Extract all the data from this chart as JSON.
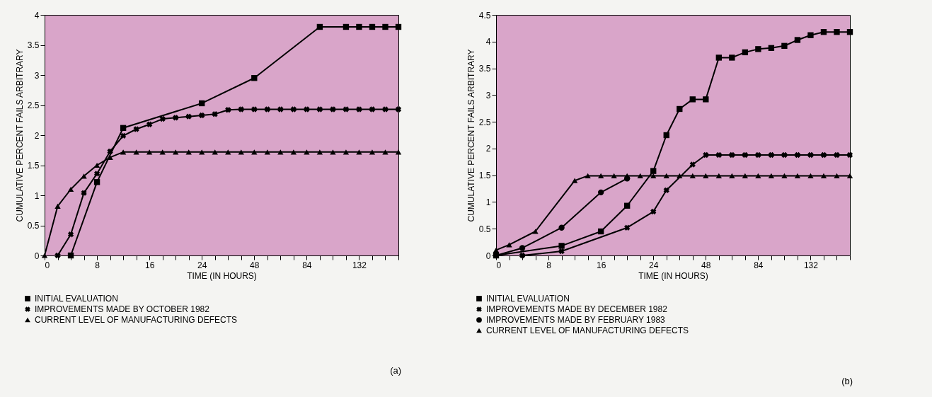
{
  "chart_data": [
    {
      "type": "line",
      "xlabel": "TIME (IN HOURS)",
      "ylabel": "CUMULATIVE PERCENT FAILS ARBITRARY",
      "categories": [
        "0",
        null,
        null,
        null,
        "8",
        null,
        null,
        null,
        "16",
        null,
        null,
        null,
        "24",
        null,
        null,
        null,
        "48",
        null,
        null,
        null,
        "84",
        null,
        null,
        null,
        "132",
        null,
        null,
        null
      ],
      "ylim": [
        0,
        4
      ],
      "yticks": [
        0,
        0.5,
        1,
        1.5,
        2,
        2.5,
        3,
        3.5,
        4
      ],
      "grid": false,
      "legend": "bottom left",
      "annotations": [
        "(a)"
      ],
      "series": [
        {
          "name": "INITIAL EVALUATION",
          "color": "#000000",
          "marker": "square",
          "values": [
            null,
            null,
            0,
            null,
            1.22,
            null,
            2.12,
            null,
            null,
            null,
            null,
            null,
            2.53,
            null,
            null,
            null,
            2.95,
            null,
            null,
            null,
            null,
            3.8,
            null,
            3.8,
            3.8,
            3.8,
            3.8,
            3.8
          ]
        },
        {
          "name": "IMPROVEMENTS MADE BY OCTOBER 1982",
          "color": "#000000",
          "marker": "cross",
          "values": [
            null,
            0,
            0.35,
            1.04,
            1.36,
            1.73,
            1.99,
            2.1,
            2.18,
            2.27,
            2.29,
            2.31,
            2.33,
            2.35,
            2.42,
            2.43,
            2.43,
            2.43,
            2.43,
            2.43,
            2.43,
            2.43,
            2.43,
            2.43,
            2.43,
            2.43,
            2.43,
            2.43
          ]
        },
        {
          "name": "CURRENT LEVEL OF MANUFACTURING DEFECTS",
          "color": "#000000",
          "marker": "triangle",
          "values": [
            0,
            0.82,
            1.1,
            1.32,
            1.5,
            1.63,
            1.72,
            1.72,
            1.72,
            1.72,
            1.72,
            1.72,
            1.72,
            1.72,
            1.72,
            1.72,
            1.72,
            1.72,
            1.72,
            1.72,
            1.72,
            1.72,
            1.72,
            1.72,
            1.72,
            1.72,
            1.72,
            1.72
          ]
        }
      ]
    },
    {
      "type": "line",
      "xlabel": "TIME (IN HOURS)",
      "ylabel": "CUMULATIVE PERCENT FAILS ARBITRARY",
      "categories": [
        "0",
        null,
        null,
        null,
        "8",
        null,
        null,
        null,
        "16",
        null,
        null,
        null,
        "24",
        null,
        null,
        null,
        "48",
        null,
        null,
        null,
        "84",
        null,
        null,
        null,
        "132",
        null,
        null,
        null
      ],
      "ylim": [
        0,
        4.5
      ],
      "yticks": [
        0,
        0.5,
        1,
        1.5,
        2,
        2.5,
        3,
        3.5,
        4,
        4.5
      ],
      "grid": false,
      "legend": "bottom left",
      "annotations": [
        "(b)"
      ],
      "series": [
        {
          "name": "INITIAL EVALUATION",
          "color": "#000000",
          "marker": "square",
          "values": [
            0,
            null,
            null,
            null,
            null,
            0.18,
            null,
            null,
            0.45,
            null,
            0.93,
            null,
            1.58,
            2.25,
            2.74,
            2.92,
            2.92,
            3.7,
            3.7,
            3.8,
            3.86,
            3.88,
            3.92,
            4.03,
            4.12,
            4.18,
            4.18,
            4.18
          ]
        },
        {
          "name": "IMPROVEMENTS MADE BY DECEMBER 1982",
          "color": "#000000",
          "marker": "cross",
          "values": [
            null,
            null,
            0,
            null,
            null,
            0.08,
            null,
            null,
            null,
            null,
            0.52,
            null,
            0.82,
            1.22,
            null,
            1.7,
            1.88,
            1.88,
            1.88,
            1.88,
            1.88,
            1.88,
            1.88,
            1.88,
            1.88,
            1.88,
            1.88,
            1.88
          ]
        },
        {
          "name": "IMPROVEMENTS MADE BY FEBRUARY 1983",
          "color": "#000000",
          "marker": "circle",
          "values": [
            0,
            null,
            0.14,
            null,
            null,
            0.52,
            null,
            null,
            1.18,
            null,
            1.44,
            null,
            null,
            null,
            null,
            null,
            null,
            null,
            null,
            null,
            null,
            null,
            null,
            null,
            null,
            null,
            null,
            null
          ]
        },
        {
          "name": "CURRENT LEVEL OF MANUFACTURING DEFECTS",
          "color": "#000000",
          "marker": "triangle",
          "values": [
            0.1,
            0.2,
            null,
            0.45,
            null,
            null,
            1.4,
            1.49,
            1.49,
            1.49,
            1.49,
            1.49,
            1.49,
            1.49,
            1.49,
            1.49,
            1.49,
            1.49,
            1.49,
            1.49,
            1.49,
            1.49,
            1.49,
            1.49,
            1.49,
            1.49,
            1.49,
            1.49
          ]
        }
      ]
    }
  ]
}
